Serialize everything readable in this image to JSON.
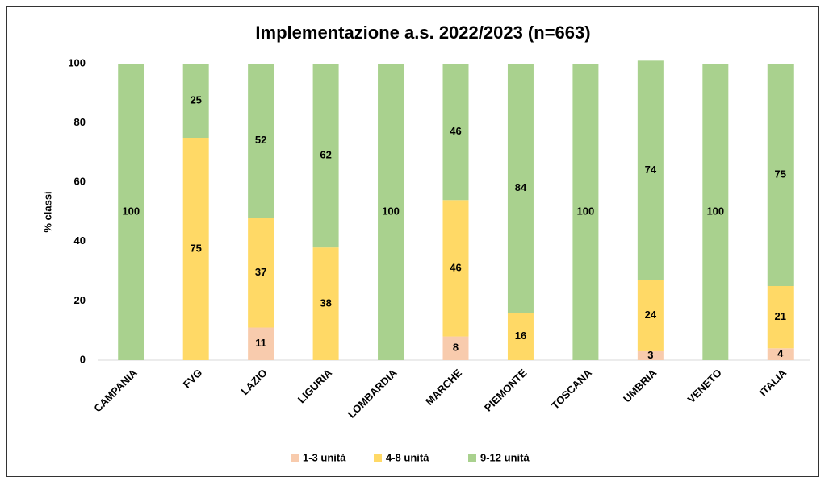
{
  "chart_data": {
    "type": "stacked_bar",
    "title": "Implementazione a.s. 2022/2023 (n=663)",
    "y_label": "% classi",
    "categories": [
      "CAMPANIA",
      "FVG",
      "LAZIO",
      "LIGURIA",
      "LOMBARDIA",
      "MARCHE",
      "PIEMONTE",
      "TOSCANA",
      "UMBRIA",
      "VENETO",
      "ITALIA"
    ],
    "series": [
      {
        "name": "1-3 unità",
        "color": "#f8cbad",
        "values": [
          0,
          0,
          11,
          0,
          0,
          8,
          0,
          0,
          3,
          0,
          4
        ]
      },
      {
        "name": "4-8 unità",
        "color": "#ffd966",
        "values": [
          0,
          75,
          37,
          38,
          0,
          46,
          16,
          0,
          24,
          0,
          21
        ]
      },
      {
        "name": "9-12 unità",
        "color": "#a9d18e",
        "values": [
          100,
          25,
          52,
          62,
          100,
          46,
          84,
          100,
          74,
          100,
          75
        ]
      }
    ],
    "ylim": [
      0,
      100
    ],
    "yticks": [
      0,
      20,
      40,
      60,
      80,
      100
    ],
    "grid": false
  }
}
